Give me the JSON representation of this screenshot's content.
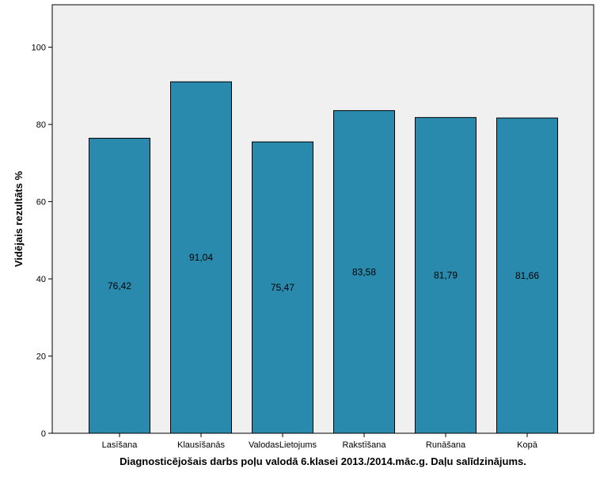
{
  "chart_data": {
    "type": "bar",
    "categories": [
      "Lasīšana",
      "Klausīšanās",
      "ValodasLietojums",
      "Rakstīšana",
      "Runāšana",
      "Kopā"
    ],
    "values": [
      76.42,
      91.04,
      75.47,
      83.58,
      81.79,
      81.66
    ],
    "value_labels": [
      "76,42",
      "91,04",
      "75,47",
      "83,58",
      "81,79",
      "81,66"
    ],
    "xlabel": "Diagnosticējošais darbs poļu valodā 6.klasei 2013./2014.māc.g. Daļu salīdzinājums.",
    "ylabel": "Vidējais rezultāts %",
    "ylim": [
      0,
      111
    ],
    "yticks": [
      0,
      20,
      40,
      60,
      80,
      100
    ],
    "grid": false,
    "bar_color": "#2a8aad",
    "plot_background": "#f0f0f0"
  }
}
